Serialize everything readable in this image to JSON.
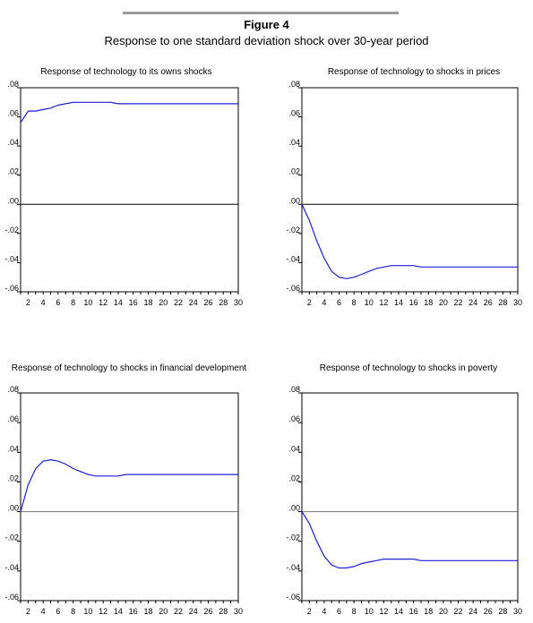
{
  "figure": {
    "title": "Figure 4",
    "subtitle": "Response to one standard deviation shock over 30-year period"
  },
  "colors": {
    "line": "#1f1fd6",
    "axis": "#000000",
    "rule": "#9a9a9a"
  },
  "chart_data": [
    {
      "type": "line",
      "title": "Response of technology to its owns shocks",
      "xlim": [
        1,
        30
      ],
      "ylim": [
        -0.06,
        0.08
      ],
      "x_ticks": [
        "2",
        "4",
        "6",
        "8",
        "10",
        "12",
        "14",
        "16",
        "18",
        "20",
        "22",
        "24",
        "26",
        "28",
        "30"
      ],
      "y_ticks": [
        ".08",
        ".06",
        ".04",
        ".02",
        ".00",
        "-.02",
        "-.04",
        "-.06"
      ],
      "x": [
        1,
        2,
        3,
        4,
        5,
        6,
        7,
        8,
        9,
        10,
        11,
        12,
        13,
        14,
        15,
        16,
        17,
        18,
        19,
        20,
        21,
        22,
        23,
        24,
        25,
        26,
        27,
        28,
        29,
        30
      ],
      "series": [
        {
          "values": [
            0.056,
            0.064,
            0.064,
            0.065,
            0.066,
            0.068,
            0.069,
            0.07,
            0.07,
            0.07,
            0.07,
            0.07,
            0.07,
            0.069,
            0.069,
            0.069,
            0.069,
            0.069,
            0.069,
            0.069,
            0.069,
            0.069,
            0.069,
            0.069,
            0.069,
            0.069,
            0.069,
            0.069,
            0.069,
            0.069
          ]
        }
      ]
    },
    {
      "type": "line",
      "title": "Response of technology to shocks in prices",
      "xlim": [
        1,
        30
      ],
      "ylim": [
        -0.06,
        0.08
      ],
      "x_ticks": [
        "2",
        "4",
        "6",
        "8",
        "10",
        "12",
        "14",
        "16",
        "18",
        "20",
        "22",
        "24",
        "26",
        "28",
        "30"
      ],
      "y_ticks": [
        ".08",
        ".06",
        ".04",
        ".02",
        ".00",
        "-.02",
        "-.04",
        "-.06"
      ],
      "x": [
        1,
        2,
        3,
        4,
        5,
        6,
        7,
        8,
        9,
        10,
        11,
        12,
        13,
        14,
        15,
        16,
        17,
        18,
        19,
        20,
        21,
        22,
        23,
        24,
        25,
        26,
        27,
        28,
        29,
        30
      ],
      "series": [
        {
          "values": [
            0.0,
            -0.011,
            -0.025,
            -0.037,
            -0.046,
            -0.05,
            -0.051,
            -0.05,
            -0.048,
            -0.046,
            -0.044,
            -0.043,
            -0.042,
            -0.042,
            -0.042,
            -0.042,
            -0.043,
            -0.043,
            -0.043,
            -0.043,
            -0.043,
            -0.043,
            -0.043,
            -0.043,
            -0.043,
            -0.043,
            -0.043,
            -0.043,
            -0.043,
            -0.043
          ]
        }
      ]
    },
    {
      "type": "line",
      "title": "Response of technology to shocks in financial development",
      "xlim": [
        1,
        30
      ],
      "ylim": [
        -0.06,
        0.08
      ],
      "x_ticks": [
        "2",
        "4",
        "6",
        "8",
        "10",
        "12",
        "14",
        "16",
        "18",
        "20",
        "22",
        "24",
        "26",
        "28",
        "30"
      ],
      "y_ticks": [
        ".08",
        ".06",
        ".04",
        ".02",
        ".00",
        "-.02",
        "-.04",
        "-.06"
      ],
      "x": [
        1,
        2,
        3,
        4,
        5,
        6,
        7,
        8,
        9,
        10,
        11,
        12,
        13,
        14,
        15,
        16,
        17,
        18,
        19,
        20,
        21,
        22,
        23,
        24,
        25,
        26,
        27,
        28,
        29,
        30
      ],
      "series": [
        {
          "values": [
            0.0,
            0.018,
            0.029,
            0.034,
            0.035,
            0.034,
            0.032,
            0.029,
            0.027,
            0.025,
            0.024,
            0.024,
            0.024,
            0.024,
            0.025,
            0.025,
            0.025,
            0.025,
            0.025,
            0.025,
            0.025,
            0.025,
            0.025,
            0.025,
            0.025,
            0.025,
            0.025,
            0.025,
            0.025,
            0.025
          ]
        }
      ]
    },
    {
      "type": "line",
      "title": "Response of technology to shocks in poverty",
      "xlim": [
        1,
        30
      ],
      "ylim": [
        -0.06,
        0.08
      ],
      "x_ticks": [
        "2",
        "4",
        "6",
        "8",
        "10",
        "12",
        "14",
        "16",
        "18",
        "20",
        "22",
        "24",
        "26",
        "28",
        "30"
      ],
      "y_ticks": [
        ".08",
        ".06",
        ".04",
        ".02",
        ".00",
        "-.02",
        "-.04",
        "-.06"
      ],
      "x": [
        1,
        2,
        3,
        4,
        5,
        6,
        7,
        8,
        9,
        10,
        11,
        12,
        13,
        14,
        15,
        16,
        17,
        18,
        19,
        20,
        21,
        22,
        23,
        24,
        25,
        26,
        27,
        28,
        29,
        30
      ],
      "series": [
        {
          "values": [
            0.0,
            -0.008,
            -0.02,
            -0.03,
            -0.036,
            -0.038,
            -0.038,
            -0.037,
            -0.035,
            -0.034,
            -0.033,
            -0.032,
            -0.032,
            -0.032,
            -0.032,
            -0.032,
            -0.033,
            -0.033,
            -0.033,
            -0.033,
            -0.033,
            -0.033,
            -0.033,
            -0.033,
            -0.033,
            -0.033,
            -0.033,
            -0.033,
            -0.033,
            -0.033
          ]
        }
      ]
    }
  ]
}
